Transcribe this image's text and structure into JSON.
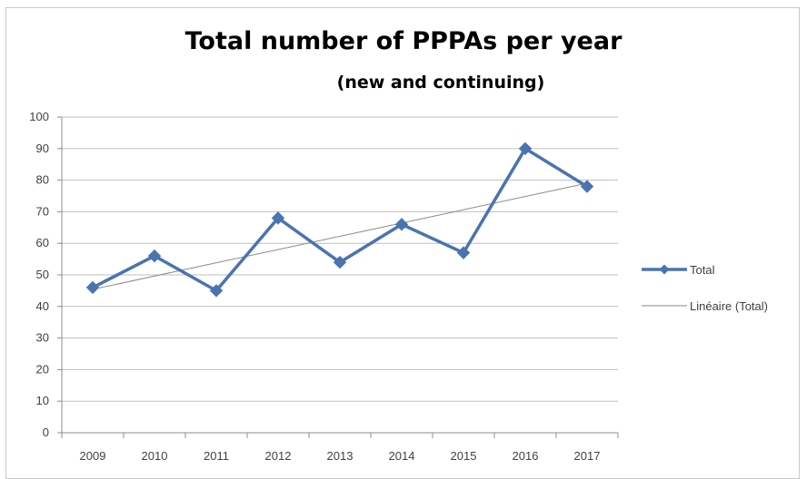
{
  "chart_data": {
    "type": "line",
    "title": "Total number of PPPAs per year",
    "subtitle": "(new and continuing)",
    "categories": [
      "2009",
      "2010",
      "2011",
      "2012",
      "2013",
      "2014",
      "2015",
      "2016",
      "2017"
    ],
    "series": [
      {
        "name": "Total",
        "values": [
          46,
          56,
          45,
          68,
          54,
          66,
          57,
          90,
          78
        ],
        "color": "#4a74b0",
        "marker": "diamond"
      }
    ],
    "trendline": {
      "name": "Linéaire (Total)",
      "type": "linear",
      "of": "Total",
      "color": "#8a8a8a"
    },
    "ylim": [
      0,
      100
    ],
    "yticks": [
      0,
      10,
      20,
      30,
      40,
      50,
      60,
      70,
      80,
      90,
      100
    ],
    "grid": true,
    "legend_position": "right"
  }
}
